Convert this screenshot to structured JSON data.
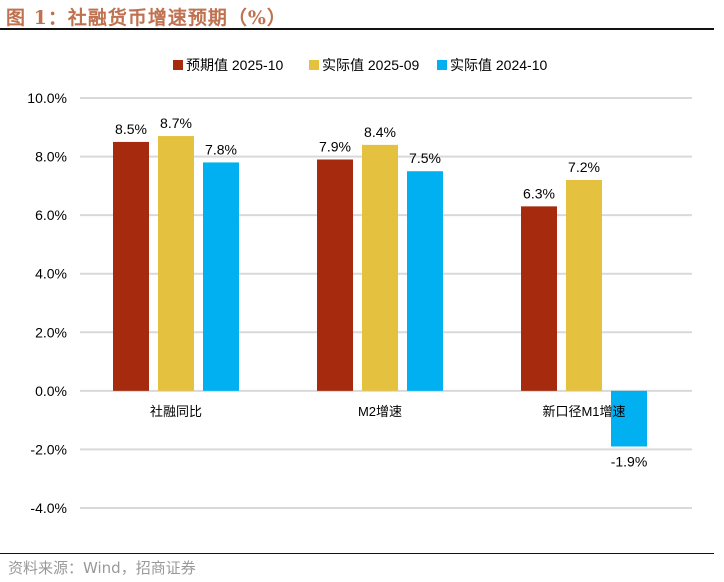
{
  "title": "图 1：社融货币增速预期（%）",
  "source": "资料来源：Wind，招商证券",
  "chart_data": {
    "type": "bar",
    "categories": [
      "社融同比",
      "M2增速",
      "新口径M1增速"
    ],
    "series": [
      {
        "name": "预期值 2025-10",
        "color": "#A52A0E",
        "values": [
          8.5,
          7.9,
          6.3
        ]
      },
      {
        "name": "实际值 2025-09",
        "color": "#E5C140",
        "values": [
          8.7,
          8.4,
          7.2
        ]
      },
      {
        "name": "实际值 2024-10",
        "color": "#00B0F0",
        "values": [
          7.8,
          7.5,
          -1.9
        ]
      }
    ],
    "data_labels": [
      [
        "8.5%",
        "7.9%",
        "6.3%"
      ],
      [
        "8.7%",
        "8.4%",
        "7.2%"
      ],
      [
        "7.8%",
        "7.5%",
        "-1.9%"
      ]
    ],
    "ylim": [
      -4,
      10
    ],
    "yticks": [
      "-4.0%",
      "-2.0%",
      "0.0%",
      "2.0%",
      "4.0%",
      "6.0%",
      "8.0%",
      "10.0%"
    ],
    "ytick_values": [
      -4,
      -2,
      0,
      2,
      4,
      6,
      8,
      10
    ],
    "grid": true,
    "legend_position": "top"
  }
}
